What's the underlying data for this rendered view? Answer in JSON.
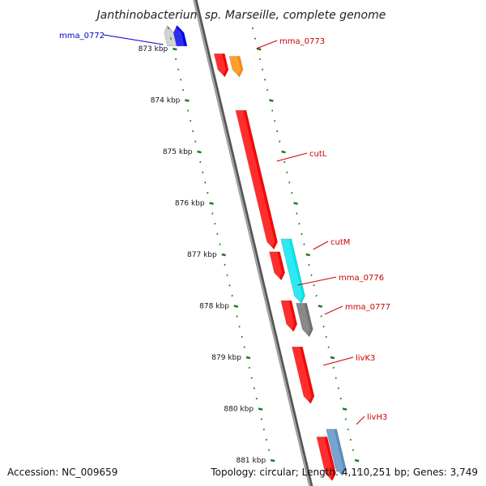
{
  "title": "Janthinobacterium sp. Marseille, complete genome",
  "footer": {
    "accession": "Accession: NC_009659",
    "topology": "Topology: circular; Length: 4,110,251 bp; Genes: 3,749"
  },
  "axis": {
    "ticks": [
      {
        "label": "873 kbp",
        "kbp": 873
      },
      {
        "label": "874 kbp",
        "kbp": 874
      },
      {
        "label": "875 kbp",
        "kbp": 875
      },
      {
        "label": "876 kbp",
        "kbp": 876
      },
      {
        "label": "877 kbp",
        "kbp": 877
      },
      {
        "label": "878 kbp",
        "kbp": 878
      },
      {
        "label": "879 kbp",
        "kbp": 879
      },
      {
        "label": "880 kbp",
        "kbp": 880
      },
      {
        "label": "881 kbp",
        "kbp": 881
      }
    ]
  },
  "colors": {
    "backbone": "#808080",
    "tick": "#1f7a1f",
    "reverse_label": "#0000cc",
    "forward_label": "#cc0000"
  },
  "genes": [
    {
      "name": "mma_0772",
      "strand": "reverse",
      "start_kbp": 872.55,
      "end_kbp": 872.95,
      "color": "#0000ee",
      "companion_color": "#c8c8c8",
      "label_side": "left"
    },
    {
      "name": "mma_0773",
      "strand": "forward",
      "start_kbp": 873.15,
      "end_kbp": 873.55,
      "color": "#ff8c00",
      "label_side": "right"
    },
    {
      "name": "cutL",
      "strand": "forward",
      "start_kbp": 874.2,
      "end_kbp": 876.9,
      "color": "#ff0000",
      "label_side": "right"
    },
    {
      "name": "cutM",
      "strand": "forward",
      "start_kbp": 876.7,
      "end_kbp": 877.95,
      "color": "#00e5ee",
      "label_side": "right"
    },
    {
      "name": "mma_0776",
      "strand": "forward",
      "start_kbp": 876.95,
      "end_kbp": 877.5,
      "color": "#ff0000",
      "label_side": "right"
    },
    {
      "name": "mma_0777",
      "strand": "forward",
      "start_kbp": 877.95,
      "end_kbp": 878.6,
      "color": "#707070",
      "label_side": "right"
    },
    {
      "name": "livK3",
      "strand": "forward",
      "start_kbp": 878.8,
      "end_kbp": 879.9,
      "color": "#ff0000",
      "label_side": "right"
    },
    {
      "name": "livH3",
      "strand": "forward",
      "start_kbp": 880.4,
      "end_kbp": 881.3,
      "color": "#5a8fc4",
      "label_side": "right"
    }
  ]
}
